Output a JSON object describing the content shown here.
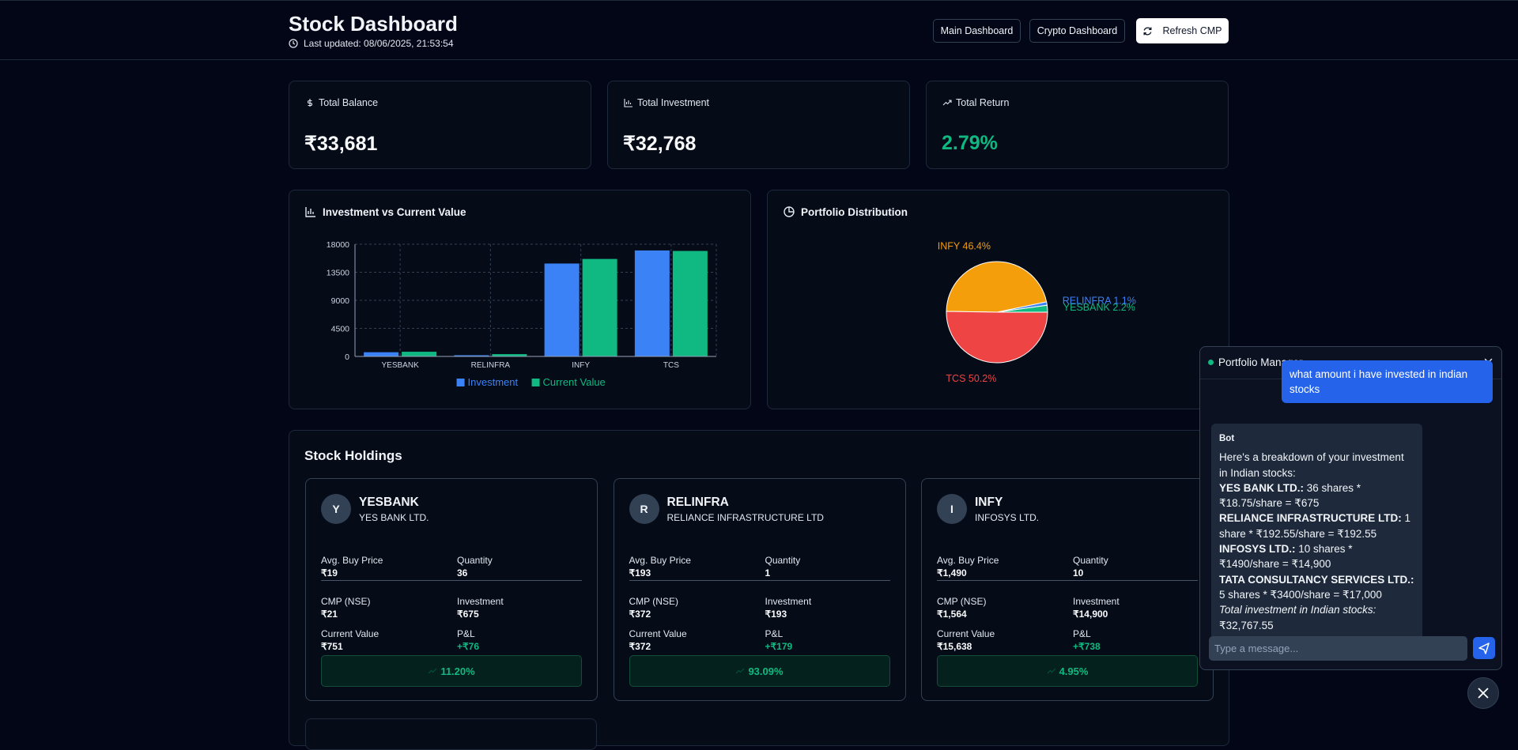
{
  "header": {
    "title": "Stock Dashboard",
    "updated": "Last updated: 08/06/2025, 21:53:54",
    "buttons": [
      "Main Dashboard",
      "Crypto Dashboard",
      "Refresh CMP"
    ]
  },
  "stats": [
    {
      "label": "Total Balance",
      "value": "₹33,681"
    },
    {
      "label": "Total Investment",
      "value": "₹32,768"
    },
    {
      "label": "Total Return",
      "value": "2.79%"
    }
  ],
  "chart_data": [
    {
      "type": "bar",
      "title": "Investment vs Current Value",
      "categories": [
        "YESBANK",
        "RELINFRA",
        "INFY",
        "TCS"
      ],
      "series": [
        {
          "name": "Investment",
          "color": "#3b82f6",
          "values": [
            675,
            193,
            14900,
            17000
          ]
        },
        {
          "name": "Current Value",
          "color": "#10b981",
          "values": [
            751,
            372,
            15638,
            16920
          ]
        }
      ],
      "ylim": [
        0,
        18000
      ],
      "yticks": [
        0,
        4500,
        9000,
        13500,
        18000
      ],
      "grid": true
    },
    {
      "type": "pie",
      "title": "Portfolio Distribution",
      "values": [
        2.2,
        1.1,
        46.4,
        50.2
      ],
      "value_labels": [
        "YESBANK 2.2%",
        "RELINFRA 1.1%",
        "INFY 46.4%",
        "TCS 50.2%"
      ],
      "colors": [
        "#10b981",
        "#3b82f6",
        "#f59e0b",
        "#ef4444"
      ]
    }
  ],
  "holdings": {
    "title": "Stock Holdings",
    "labels": [
      "Avg. Buy Price",
      "Quantity",
      "CMP (NSE)",
      "Investment",
      "Current Value",
      "P&L"
    ],
    "items": [
      {
        "initial": "Y",
        "symbol": "YESBANK",
        "name": "YES BANK LTD.",
        "fields": [
          "₹19",
          "36",
          "₹21",
          "₹675",
          "₹751",
          "+₹76"
        ],
        "return": "11.20%"
      },
      {
        "initial": "R",
        "symbol": "RELINFRA",
        "name": "RELIANCE INFRASTRUCTURE LTD",
        "fields": [
          "₹193",
          "1",
          "₹372",
          "₹193",
          "₹372",
          "+₹179"
        ],
        "return": "93.09%"
      },
      {
        "initial": "I",
        "symbol": "INFY",
        "name": "INFOSYS LTD.",
        "fields": [
          "₹1,490",
          "10",
          "₹1,564",
          "₹14,900",
          "₹15,638",
          "+₹738"
        ],
        "return": "4.95%"
      }
    ]
  },
  "chat": {
    "title": "Portfolio Manager",
    "user_message": "what amount i have invested in indian stocks",
    "bot": {
      "sender": "Bot",
      "lines": [
        {
          "text": "Here's a breakdown of your investment in Indian stocks:"
        },
        {
          "bold": "YES BANK LTD.:",
          "text": " 36 shares * ₹18.75/share = ₹675"
        },
        {
          "bold": "RELIANCE INFRASTRUCTURE LTD:",
          "text": " 1 share * ₹192.55/share = ₹192.55"
        },
        {
          "bold": "INFOSYS LTD.:",
          "text": " 10 shares * ₹1490/share = ₹14,900"
        },
        {
          "bold": "TATA CONSULTANCY SERVICES LTD.:",
          "text": " 5 shares * ₹3400/share = ₹17,000"
        },
        {
          "italic": "Total investment in Indian stocks:",
          "text": " ₹32,767.55"
        }
      ]
    },
    "placeholder": "Type a message..."
  }
}
